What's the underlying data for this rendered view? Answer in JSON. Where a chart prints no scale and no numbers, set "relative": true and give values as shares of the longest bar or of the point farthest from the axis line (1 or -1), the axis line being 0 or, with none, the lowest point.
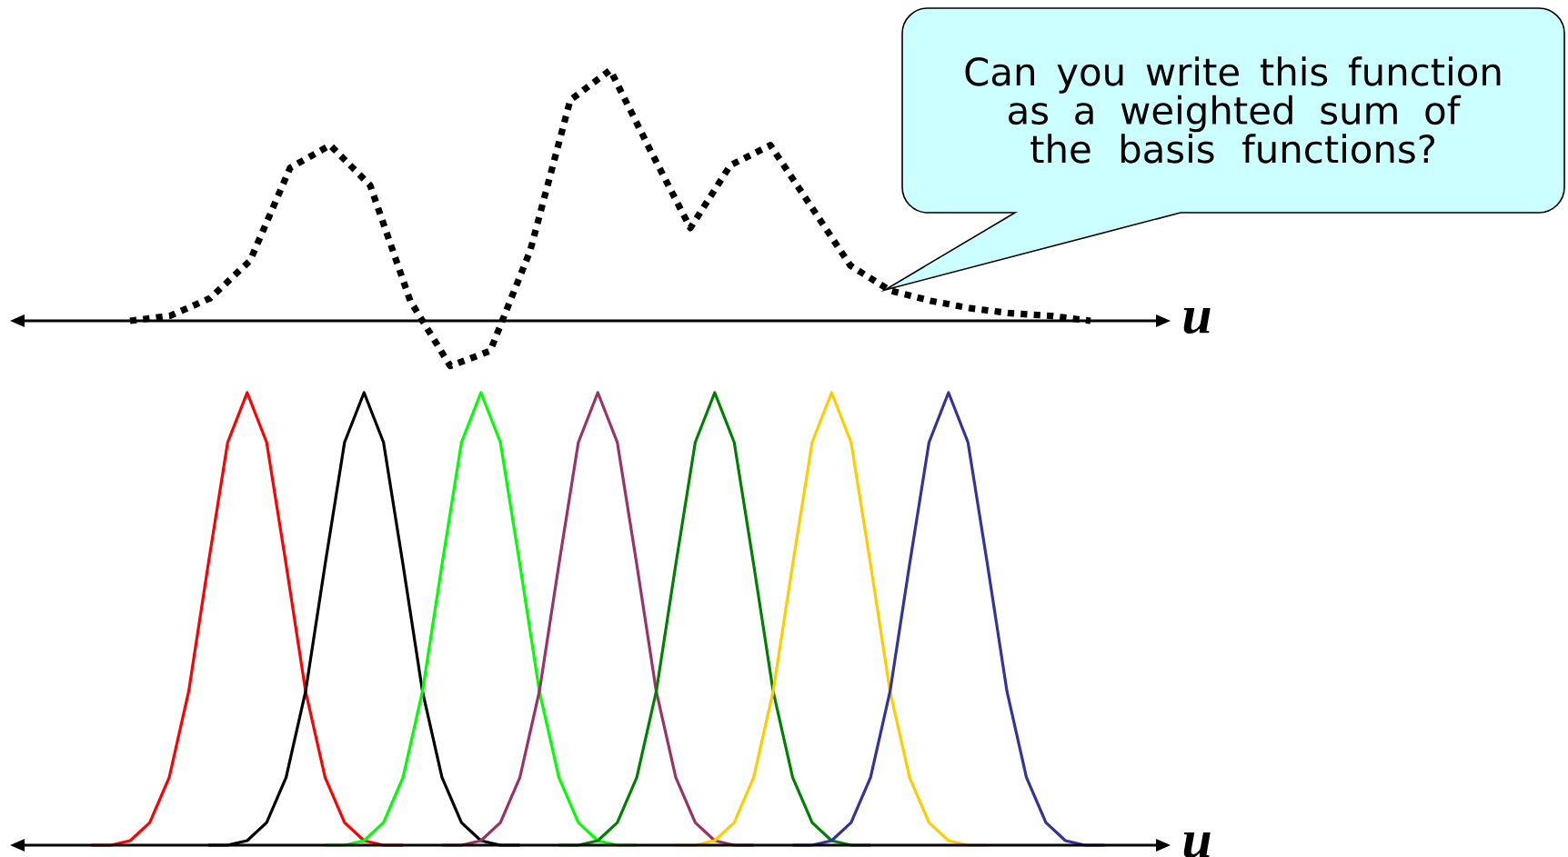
{
  "chart_data": [
    {
      "type": "line",
      "relative": true,
      "line_style": "dotted",
      "xlabel": "u",
      "categories": [
        null,
        null,
        null,
        null,
        null,
        null,
        null,
        null,
        null,
        null,
        null,
        null,
        null,
        null,
        null,
        null,
        null,
        null,
        null,
        null,
        null,
        null,
        null,
        null,
        null,
        null,
        null,
        null,
        null,
        null
      ],
      "series": [
        {
          "color": "#000000",
          "values": [
            null,
            null,
            null,
            0,
            0.02,
            0.09,
            0.24,
            0.61,
            0.7,
            0.54,
            0.08,
            -0.18,
            -0.12,
            0.28,
            0.88,
            1,
            0.68,
            0.37,
            0.62,
            0.7,
            0.46,
            0.22,
            0.12,
            0.08,
            0.05,
            0.03,
            0.02,
            0,
            null,
            null
          ]
        }
      ],
      "annotations": [
        "Can you write this function as a weighted sum of the basis functions?"
      ]
    },
    {
      "type": "line",
      "relative": true,
      "line_style": "solid",
      "xlabel": "u",
      "categories": [
        null,
        null,
        null,
        null,
        null,
        null,
        null,
        null,
        null,
        null,
        null,
        null,
        null,
        null,
        null,
        null,
        null,
        null,
        null,
        null,
        null,
        null,
        null,
        null,
        null,
        null,
        null,
        null,
        null,
        null,
        null,
        null,
        null,
        null,
        null,
        null,
        null,
        null,
        null,
        null,
        null,
        null,
        null,
        null,
        null,
        null,
        null,
        null,
        null,
        null,
        null,
        null,
        null,
        null,
        null,
        null,
        null,
        null,
        null,
        null
      ],
      "series": [
        {
          "color": "#ff0000",
          "values": [
            null,
            null,
            null,
            null,
            0,
            0,
            0.01,
            0.05,
            0.15,
            0.34,
            0.62,
            0.89,
            1,
            0.89,
            0.62,
            0.34,
            0.15,
            0.05,
            0.01,
            0,
            0,
            null,
            null,
            null,
            null,
            null,
            null,
            null,
            null,
            null,
            null,
            null,
            null,
            null,
            null,
            null,
            null,
            null,
            null,
            null,
            null,
            null,
            null,
            null,
            null,
            null,
            null,
            null,
            null,
            null,
            null,
            null,
            null,
            null,
            null,
            null,
            null,
            null,
            null,
            null
          ]
        },
        {
          "color": "#000000",
          "values": [
            null,
            null,
            null,
            null,
            null,
            null,
            null,
            null,
            null,
            null,
            0,
            0,
            0.01,
            0.05,
            0.15,
            0.34,
            0.62,
            0.89,
            1,
            0.89,
            0.62,
            0.34,
            0.15,
            0.05,
            0.01,
            0,
            0,
            null,
            null,
            null,
            null,
            null,
            null,
            null,
            null,
            null,
            null,
            null,
            null,
            null,
            null,
            null,
            null,
            null,
            null,
            null,
            null,
            null,
            null,
            null,
            null,
            null,
            null,
            null,
            null,
            null,
            null,
            null,
            null,
            null
          ]
        },
        {
          "color": "#00ff00",
          "values": [
            null,
            null,
            null,
            null,
            null,
            null,
            null,
            null,
            null,
            null,
            null,
            null,
            null,
            null,
            null,
            null,
            0,
            0,
            0.01,
            0.05,
            0.15,
            0.34,
            0.62,
            0.89,
            1,
            0.89,
            0.62,
            0.34,
            0.15,
            0.05,
            0.01,
            0,
            0,
            null,
            null,
            null,
            null,
            null,
            null,
            null,
            null,
            null,
            null,
            null,
            null,
            null,
            null,
            null,
            null,
            null,
            null,
            null,
            null,
            null,
            null,
            null,
            null,
            null,
            null,
            null
          ]
        },
        {
          "color": "#993366",
          "values": [
            null,
            null,
            null,
            null,
            null,
            null,
            null,
            null,
            null,
            null,
            null,
            null,
            null,
            null,
            null,
            null,
            null,
            null,
            null,
            null,
            null,
            null,
            0,
            0,
            0.01,
            0.05,
            0.15,
            0.34,
            0.62,
            0.89,
            1,
            0.89,
            0.62,
            0.34,
            0.15,
            0.05,
            0.01,
            0,
            0,
            null,
            null,
            null,
            null,
            null,
            null,
            null,
            null,
            null,
            null,
            null,
            null,
            null,
            null,
            null,
            null,
            null,
            null,
            null,
            null,
            null
          ]
        },
        {
          "color": "#008000",
          "values": [
            null,
            null,
            null,
            null,
            null,
            null,
            null,
            null,
            null,
            null,
            null,
            null,
            null,
            null,
            null,
            null,
            null,
            null,
            null,
            null,
            null,
            null,
            null,
            null,
            null,
            null,
            null,
            null,
            0,
            0,
            0.01,
            0.05,
            0.15,
            0.34,
            0.62,
            0.89,
            1,
            0.89,
            0.62,
            0.34,
            0.15,
            0.05,
            0.01,
            0,
            0,
            null,
            null,
            null,
            null,
            null,
            null,
            null,
            null,
            null,
            null,
            null,
            null,
            null,
            null,
            null
          ]
        },
        {
          "color": "#ffcc00",
          "values": [
            null,
            null,
            null,
            null,
            null,
            null,
            null,
            null,
            null,
            null,
            null,
            null,
            null,
            null,
            null,
            null,
            null,
            null,
            null,
            null,
            null,
            null,
            null,
            null,
            null,
            null,
            null,
            null,
            null,
            null,
            null,
            null,
            null,
            null,
            0,
            0,
            0.01,
            0.05,
            0.15,
            0.34,
            0.62,
            0.89,
            1,
            0.89,
            0.62,
            0.34,
            0.15,
            0.05,
            0.01,
            0,
            0,
            null,
            null,
            null,
            null,
            null,
            null,
            null,
            null,
            null
          ]
        },
        {
          "color": "#333399",
          "values": [
            null,
            null,
            null,
            null,
            null,
            null,
            null,
            null,
            null,
            null,
            null,
            null,
            null,
            null,
            null,
            null,
            null,
            null,
            null,
            null,
            null,
            null,
            null,
            null,
            null,
            null,
            null,
            null,
            null,
            null,
            null,
            null,
            null,
            null,
            null,
            null,
            null,
            null,
            null,
            null,
            0,
            0,
            0.01,
            0.05,
            0.15,
            0.34,
            0.62,
            0.89,
            1,
            0.89,
            0.62,
            0.34,
            0.15,
            0.05,
            0.01,
            0,
            0,
            null,
            null,
            null
          ]
        }
      ]
    }
  ]
}
